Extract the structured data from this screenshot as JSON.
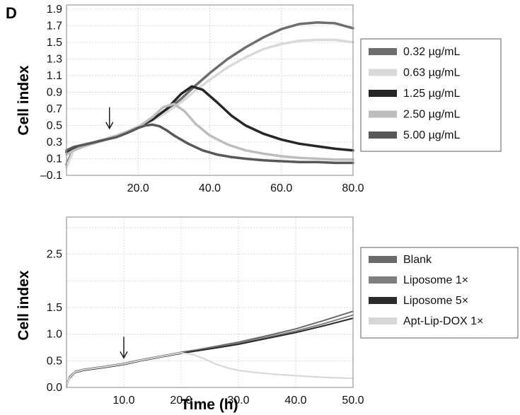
{
  "panel_label": "D",
  "chart_data": [
    {
      "type": "line",
      "title": "",
      "xlabel": "",
      "ylabel": "Cell index",
      "xlim": [
        0,
        80
      ],
      "ylim": [
        -0.1,
        1.95
      ],
      "xticks": [
        20,
        40,
        60,
        80
      ],
      "xtick_labels": [
        "20.0",
        "40.0",
        "60.0",
        "80.0"
      ],
      "yticks": [
        -0.1,
        0.1,
        0.3,
        0.5,
        0.7,
        0.9,
        1.1,
        1.3,
        1.5,
        1.7,
        1.9
      ],
      "ytick_labels": [
        "–0.1",
        "0.1",
        "0.3",
        "0.5",
        "0.7",
        "0.9",
        "1.1",
        "1.3",
        "1.5",
        "1.7",
        "1.9"
      ],
      "grid": true,
      "legend_position": "right",
      "annotation": {
        "type": "arrow",
        "x": 12,
        "y": 0.43
      },
      "series": [
        {
          "name": "0.32 µg/mL",
          "color": "#6e6e6e",
          "x": [
            0,
            2,
            5,
            8,
            11,
            14,
            17,
            20,
            24,
            28,
            32,
            36,
            40,
            45,
            50,
            55,
            60,
            65,
            70,
            75,
            80
          ],
          "y": [
            0.03,
            0.22,
            0.26,
            0.3,
            0.34,
            0.38,
            0.43,
            0.48,
            0.56,
            0.68,
            0.82,
            0.98,
            1.13,
            1.3,
            1.44,
            1.56,
            1.66,
            1.72,
            1.74,
            1.73,
            1.67
          ]
        },
        {
          "name": "0.63 µg/mL",
          "color": "#d9d9d9",
          "x": [
            0,
            2,
            5,
            8,
            11,
            14,
            17,
            20,
            24,
            28,
            32,
            36,
            40,
            45,
            50,
            55,
            60,
            65,
            70,
            75,
            80
          ],
          "y": [
            0.0,
            0.2,
            0.25,
            0.3,
            0.34,
            0.38,
            0.43,
            0.48,
            0.56,
            0.66,
            0.78,
            0.92,
            1.05,
            1.2,
            1.32,
            1.42,
            1.48,
            1.52,
            1.53,
            1.53,
            1.5
          ]
        },
        {
          "name": "1.25 µg/mL",
          "color": "#262626",
          "x": [
            0,
            2,
            5,
            8,
            11,
            14,
            17,
            20,
            24,
            28,
            32,
            35,
            38,
            42,
            46,
            50,
            55,
            60,
            65,
            70,
            75,
            80
          ],
          "y": [
            0.18,
            0.22,
            0.26,
            0.3,
            0.33,
            0.37,
            0.42,
            0.48,
            0.57,
            0.7,
            0.88,
            0.97,
            0.93,
            0.78,
            0.62,
            0.5,
            0.4,
            0.33,
            0.28,
            0.25,
            0.22,
            0.2
          ]
        },
        {
          "name": "2.50 µg/mL",
          "color": "#bdbdbd",
          "x": [
            0,
            2,
            5,
            8,
            11,
            14,
            17,
            20,
            24,
            27,
            30,
            33,
            36,
            40,
            45,
            50,
            55,
            60,
            65,
            70,
            75,
            80
          ],
          "y": [
            0.15,
            0.2,
            0.25,
            0.29,
            0.33,
            0.37,
            0.42,
            0.48,
            0.6,
            0.72,
            0.76,
            0.67,
            0.52,
            0.38,
            0.27,
            0.2,
            0.16,
            0.13,
            0.11,
            0.1,
            0.09,
            0.09
          ]
        },
        {
          "name": "5.00 µg/mL",
          "color": "#585858",
          "x": [
            0,
            2,
            5,
            8,
            11,
            14,
            17,
            20,
            22,
            24,
            26,
            28,
            30,
            34,
            38,
            42,
            46,
            50,
            55,
            60,
            65,
            70,
            75,
            80
          ],
          "y": [
            0.2,
            0.24,
            0.27,
            0.3,
            0.33,
            0.36,
            0.41,
            0.47,
            0.5,
            0.51,
            0.49,
            0.44,
            0.38,
            0.28,
            0.2,
            0.15,
            0.12,
            0.1,
            0.08,
            0.07,
            0.06,
            0.06,
            0.05,
            0.05
          ]
        }
      ]
    },
    {
      "type": "line",
      "title": "",
      "xlabel": "Time (h)",
      "ylabel": "Cell index",
      "xlim": [
        0,
        50
      ],
      "ylim": [
        0,
        3.2
      ],
      "xticks": [
        10,
        20,
        30,
        40,
        50
      ],
      "xtick_labels": [
        "10.0",
        "20.0",
        "30.0",
        "40.0",
        "50.0"
      ],
      "yticks": [
        0,
        0.5,
        1.0,
        1.5,
        2.5
      ],
      "ytick_labels": [
        "0.0",
        "0.5",
        "1.0",
        "1.5",
        "2.5"
      ],
      "grid": true,
      "legend_position": "right",
      "annotation": {
        "type": "arrow",
        "x": 10,
        "y": 0.5
      },
      "series": [
        {
          "name": "Blank",
          "color": "#6a6a6a",
          "x": [
            0,
            0.5,
            1.5,
            3,
            5,
            7,
            10,
            13,
            16,
            20,
            23,
            26,
            30,
            35,
            40,
            45,
            50
          ],
          "y": [
            0.03,
            0.2,
            0.3,
            0.34,
            0.37,
            0.4,
            0.45,
            0.52,
            0.58,
            0.66,
            0.71,
            0.77,
            0.85,
            0.97,
            1.1,
            1.26,
            1.43
          ]
        },
        {
          "name": "Liposome 1×",
          "color": "#7e7e7e",
          "x": [
            0,
            0.5,
            1.5,
            3,
            5,
            7,
            10,
            13,
            16,
            20,
            23,
            26,
            30,
            35,
            40,
            45,
            50
          ],
          "y": [
            0.02,
            0.18,
            0.29,
            0.33,
            0.36,
            0.39,
            0.44,
            0.51,
            0.57,
            0.65,
            0.7,
            0.75,
            0.83,
            0.94,
            1.06,
            1.2,
            1.36
          ]
        },
        {
          "name": "Liposome 5×",
          "color": "#2a2a2a",
          "x": [
            0,
            0.5,
            1.5,
            3,
            5,
            7,
            10,
            13,
            16,
            20,
            23,
            26,
            30,
            35,
            40,
            45,
            50
          ],
          "y": [
            0.02,
            0.17,
            0.28,
            0.32,
            0.35,
            0.38,
            0.43,
            0.5,
            0.56,
            0.64,
            0.69,
            0.74,
            0.81,
            0.92,
            1.03,
            1.16,
            1.3
          ]
        },
        {
          "name": "Apt-Lip-DOX 1×",
          "color": "#d6d6d6",
          "x": [
            0,
            0.5,
            1.5,
            3,
            5,
            7,
            10,
            13,
            16,
            20,
            22,
            24,
            26,
            28,
            30,
            33,
            36,
            40,
            45,
            50
          ],
          "y": [
            0.02,
            0.18,
            0.29,
            0.33,
            0.36,
            0.39,
            0.44,
            0.51,
            0.57,
            0.65,
            0.62,
            0.54,
            0.44,
            0.37,
            0.32,
            0.28,
            0.25,
            0.22,
            0.19,
            0.17
          ]
        }
      ]
    }
  ]
}
